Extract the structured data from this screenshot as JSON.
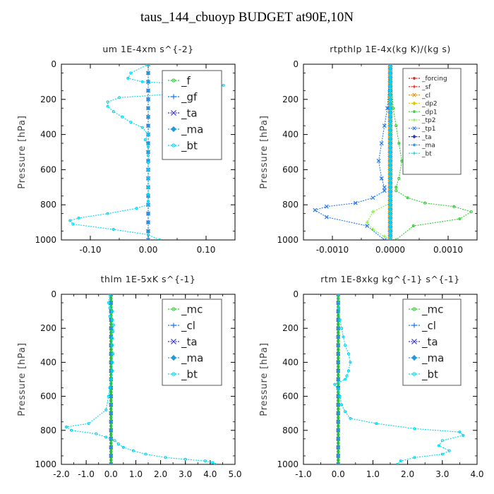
{
  "figure": {
    "title": "taus_144_cbuoyp  BUDGET at90E,10N"
  },
  "chart_data": [
    {
      "type": "line",
      "title": "um   1E-4xm  s^{-2}",
      "ylabel": "Pressure [hPa]",
      "xlim": [
        -0.15,
        0.15
      ],
      "ylim": [
        1000,
        0
      ],
      "xticks": [
        -0.1,
        0.0,
        0.1
      ],
      "xtick_labels": [
        "-0.10",
        "0.00",
        "0.10"
      ],
      "yticks": [
        0,
        200,
        400,
        600,
        800,
        1000
      ],
      "ytick_labels": [
        "0",
        "200",
        "400",
        "600",
        "800",
        "1000"
      ],
      "legend": "top-right",
      "legend_font": 15,
      "series": [
        {
          "name": "_f",
          "color": "#33cc33",
          "x": [
            0,
            0,
            0,
            0,
            0,
            0,
            0,
            0,
            0,
            0,
            0,
            0,
            0,
            0,
            0,
            0,
            0,
            0,
            0,
            0,
            0
          ],
          "y": [
            0,
            50,
            100,
            150,
            200,
            250,
            300,
            350,
            400,
            450,
            500,
            550,
            600,
            650,
            700,
            750,
            800,
            850,
            900,
            950,
            1000
          ]
        },
        {
          "name": "_gf",
          "color": "#2277ee",
          "x": [
            0,
            0,
            0,
            0,
            0,
            0,
            0,
            0,
            0,
            0,
            0,
            0,
            0,
            0,
            0,
            0,
            0,
            0,
            0,
            0,
            0
          ],
          "y": [
            0,
            50,
            100,
            150,
            200,
            250,
            300,
            350,
            400,
            450,
            500,
            550,
            600,
            650,
            700,
            750,
            800,
            850,
            900,
            950,
            1000
          ]
        },
        {
          "name": "_ta",
          "color": "#3333cc",
          "x": [
            0,
            0,
            0,
            0,
            0,
            0,
            0,
            0,
            0,
            0,
            0,
            0,
            0,
            0,
            0,
            0,
            0,
            0,
            0,
            0,
            0
          ],
          "y": [
            0,
            50,
            100,
            150,
            200,
            250,
            300,
            350,
            400,
            450,
            500,
            550,
            600,
            650,
            700,
            750,
            800,
            850,
            900,
            950,
            1000
          ]
        },
        {
          "name": "_ma",
          "color": "#2299dd",
          "x": [
            0,
            0,
            0,
            0,
            0,
            0,
            0,
            0,
            0,
            0,
            0,
            0,
            0,
            0,
            0,
            0,
            0,
            0,
            0,
            0,
            0
          ],
          "y": [
            0,
            50,
            100,
            150,
            200,
            250,
            300,
            350,
            400,
            450,
            500,
            550,
            600,
            650,
            700,
            750,
            800,
            850,
            900,
            950,
            1000
          ]
        },
        {
          "name": "_bt",
          "color": "#00d8f0",
          "x": [
            0,
            -0.03,
            -0.035,
            -0.01,
            0.05,
            0.13,
            0.1,
            0.04,
            -0.05,
            -0.07,
            -0.07,
            -0.06,
            -0.045,
            -0.03,
            -0.01,
            0,
            -0.005,
            0,
            0,
            0,
            0,
            0,
            0,
            0,
            0,
            0,
            -0.02,
            -0.07,
            -0.12,
            -0.135,
            -0.13,
            -0.06,
            0,
            0.02
          ],
          "y": [
            0,
            50,
            80,
            100,
            110,
            120,
            140,
            170,
            190,
            215,
            240,
            270,
            300,
            330,
            360,
            400,
            430,
            470,
            520,
            560,
            600,
            650,
            700,
            740,
            780,
            800,
            820,
            850,
            875,
            890,
            910,
            940,
            970,
            1000
          ]
        }
      ]
    },
    {
      "type": "line",
      "title": "rtpthlp   1E-4x(kg K)/(kg s)",
      "ylabel": "Pressure [hPa]",
      "xlim": [
        -0.0015,
        0.0015
      ],
      "ylim": [
        1000,
        0
      ],
      "xticks": [
        -0.001,
        0.0,
        0.001
      ],
      "xtick_labels": [
        "-0.0010",
        "0.0000",
        "0.0010"
      ],
      "yticks": [
        0,
        200,
        400,
        600,
        800,
        1000
      ],
      "ytick_labels": [
        "0",
        "200",
        "400",
        "600",
        "800",
        "1000"
      ],
      "legend": "top-right",
      "legend_font": 9,
      "series": [
        {
          "name": "_forcing",
          "color": "#cc2222",
          "x": [
            0,
            0
          ],
          "y": [
            0,
            1000
          ]
        },
        {
          "name": "_sf",
          "color": "#dd2222",
          "x": [
            0,
            0
          ],
          "y": [
            0,
            1000
          ]
        },
        {
          "name": "_cl",
          "color": "#ee8800",
          "x": [
            0,
            0
          ],
          "y": [
            0,
            1000
          ]
        },
        {
          "name": "_dp2",
          "color": "#ddcc00",
          "x": [
            0,
            0
          ],
          "y": [
            0,
            1000
          ]
        },
        {
          "name": "_dp1",
          "color": "#33cc33",
          "x": [
            0,
            5e-05,
            0.0001,
            0.00015,
            0.0002,
            0.00015,
            0.0001,
            0.0001,
            0.0003,
            0.0006,
            0.0011,
            0.0014,
            0.0012,
            0.0004,
            0.0001
          ],
          "y": [
            0,
            250,
            350,
            450,
            550,
            650,
            700,
            720,
            760,
            790,
            810,
            840,
            880,
            920,
            1000
          ]
        },
        {
          "name": "_tp2",
          "color": "#88ee44",
          "x": [
            0,
            0,
            0,
            0,
            0,
            0,
            -0.0003,
            -0.0004,
            -0.0003,
            -0.0001,
            0
          ],
          "y": [
            0,
            250,
            500,
            700,
            760,
            790,
            840,
            900,
            940,
            980,
            1000
          ]
        },
        {
          "name": "_tp1",
          "color": "#2277ee",
          "x": [
            0,
            -5e-05,
            -0.0001,
            -0.00015,
            -0.0002,
            -0.00015,
            -0.0001,
            -0.0001,
            -0.0003,
            -0.0006,
            -0.0011,
            -0.0013,
            -0.0011,
            -0.0004,
            -0.0001
          ],
          "y": [
            0,
            250,
            350,
            450,
            550,
            650,
            700,
            720,
            760,
            790,
            810,
            830,
            870,
            920,
            1000
          ]
        },
        {
          "name": "_ta",
          "color": "#3333cc",
          "x": [
            0,
            0
          ],
          "y": [
            0,
            1000
          ]
        },
        {
          "name": "_ma",
          "color": "#2299dd",
          "x": [
            0,
            0
          ],
          "y": [
            0,
            1000
          ]
        },
        {
          "name": "_bt",
          "color": "#00d8f0",
          "x": [
            0,
            0
          ],
          "y": [
            0,
            1000
          ]
        }
      ]
    },
    {
      "type": "line",
      "title": "thlm   1E-5xK  s^{-1}",
      "ylabel": "Pressure [hPa]",
      "xlim": [
        -2.0,
        5.0
      ],
      "ylim": [
        1000,
        0
      ],
      "xticks": [
        -2,
        -1,
        0,
        1,
        2,
        3,
        4,
        5
      ],
      "xtick_labels": [
        "-2.0",
        "-1.0",
        "0.0",
        "1.0",
        "2.0",
        "3.0",
        "4.0",
        "5.0"
      ],
      "yticks": [
        0,
        200,
        400,
        600,
        800,
        1000
      ],
      "ytick_labels": [
        "0",
        "200",
        "400",
        "600",
        "800",
        "1000"
      ],
      "legend": "top-right",
      "legend_font": 15,
      "series": [
        {
          "name": "_mc",
          "color": "#33cc33",
          "x": [
            0,
            0
          ],
          "y": [
            0,
            1000
          ]
        },
        {
          "name": "_cl",
          "color": "#2277ee",
          "x": [
            0,
            0,
            0,
            0,
            0,
            0,
            0,
            0,
            0,
            0,
            0,
            0,
            0,
            0,
            0,
            0,
            0,
            0,
            0,
            0,
            0
          ],
          "y": [
            0,
            50,
            100,
            150,
            200,
            250,
            300,
            350,
            400,
            450,
            500,
            550,
            600,
            650,
            700,
            750,
            800,
            850,
            900,
            950,
            1000
          ]
        },
        {
          "name": "_ta",
          "color": "#3333cc",
          "x": [
            0,
            0,
            0,
            0,
            0,
            0,
            0,
            0,
            0,
            0,
            0,
            0,
            0,
            0,
            0,
            0,
            0,
            0,
            0,
            0,
            0
          ],
          "y": [
            0,
            50,
            100,
            150,
            200,
            250,
            300,
            350,
            400,
            450,
            500,
            550,
            600,
            650,
            700,
            750,
            800,
            850,
            900,
            950,
            1000
          ]
        },
        {
          "name": "_ma",
          "color": "#2299dd",
          "x": [
            0,
            0,
            0,
            0,
            0,
            0,
            0,
            0,
            0,
            0,
            0,
            0,
            0,
            0,
            0,
            0,
            0,
            0,
            0,
            0,
            0
          ],
          "y": [
            0,
            50,
            100,
            150,
            200,
            250,
            300,
            350,
            400,
            450,
            500,
            550,
            600,
            650,
            700,
            750,
            800,
            850,
            900,
            950,
            1000
          ]
        },
        {
          "name": "_bt",
          "color": "#00d8f0",
          "x": [
            -0.05,
            -0.1,
            -0.05,
            0.05,
            -0.05,
            0.05,
            0.1,
            0.08,
            0.05,
            0.05,
            0.08,
            0.05,
            0.05,
            0.0,
            -0.05,
            -0.1,
            -0.2,
            -0.9,
            -1.8,
            -1.6,
            -0.6,
            -0.2,
            0.15,
            0.3,
            0.5,
            0.9,
            1.4,
            2.2,
            3.0,
            3.8,
            4.1,
            4.2
          ],
          "y": [
            0,
            50,
            80,
            100,
            130,
            150,
            180,
            220,
            260,
            300,
            350,
            400,
            450,
            500,
            550,
            600,
            680,
            760,
            780,
            800,
            820,
            840,
            860,
            880,
            900,
            920,
            940,
            960,
            970,
            980,
            990,
            1000
          ]
        }
      ]
    },
    {
      "type": "line",
      "title": "rtm   1E-8xkg  kg^{-1}  s^{-1}",
      "ylabel": "Pressure [hPa]",
      "xlim": [
        -1.0,
        4.0
      ],
      "ylim": [
        1000,
        0
      ],
      "xticks": [
        -1,
        0,
        1,
        2,
        3,
        4
      ],
      "xtick_labels": [
        "-1.0",
        "0.0",
        "1.0",
        "2.0",
        "3.0",
        "4.0"
      ],
      "yticks": [
        0,
        200,
        400,
        600,
        800,
        1000
      ],
      "ytick_labels": [
        "0",
        "200",
        "400",
        "600",
        "800",
        "1000"
      ],
      "legend": "top-right",
      "legend_font": 15,
      "series": [
        {
          "name": "_mc",
          "color": "#33cc33",
          "x": [
            0,
            0
          ],
          "y": [
            0,
            1000
          ]
        },
        {
          "name": "_cl",
          "color": "#2277ee",
          "x": [
            0,
            0,
            0,
            0,
            0,
            0,
            0,
            0,
            0,
            0,
            0,
            0,
            0,
            0,
            0,
            0,
            0,
            0,
            0,
            0,
            0
          ],
          "y": [
            0,
            50,
            100,
            150,
            200,
            250,
            300,
            350,
            400,
            450,
            500,
            550,
            600,
            650,
            700,
            750,
            800,
            850,
            900,
            950,
            1000
          ]
        },
        {
          "name": "_ta",
          "color": "#3333cc",
          "x": [
            0,
            0,
            0,
            0,
            0,
            0,
            0,
            0,
            0,
            0,
            0,
            0,
            0,
            0,
            0,
            0,
            0,
            0,
            0,
            0,
            0
          ],
          "y": [
            0,
            50,
            100,
            150,
            200,
            250,
            300,
            350,
            400,
            450,
            500,
            550,
            600,
            650,
            700,
            750,
            800,
            850,
            900,
            950,
            1000
          ]
        },
        {
          "name": "_ma",
          "color": "#2299dd",
          "x": [
            0,
            0,
            0,
            0,
            0,
            0,
            0,
            0,
            0,
            0,
            0,
            0,
            0,
            0,
            0,
            0,
            0,
            0,
            0,
            0,
            0
          ],
          "y": [
            0,
            50,
            100,
            150,
            200,
            250,
            300,
            350,
            400,
            450,
            500,
            550,
            600,
            650,
            700,
            750,
            800,
            850,
            900,
            950,
            1000
          ]
        },
        {
          "name": "_bt",
          "color": "#00d8f0",
          "x": [
            0,
            0.02,
            0.05,
            0.1,
            0.15,
            0.2,
            0.3,
            0.35,
            0.3,
            0.25,
            0.2,
            0.0,
            -0.1,
            0.0,
            0.05,
            0.1,
            0.2,
            0.35,
            1.1,
            2.2,
            3.5,
            3.6,
            3.0,
            2.9,
            3.2,
            3.0,
            2.2,
            1.8,
            1.7
          ],
          "y": [
            0,
            80,
            150,
            200,
            250,
            300,
            350,
            400,
            450,
            480,
            500,
            520,
            530,
            560,
            600,
            650,
            690,
            730,
            760,
            790,
            810,
            830,
            860,
            890,
            920,
            940,
            960,
            980,
            1000
          ]
        }
      ]
    }
  ]
}
